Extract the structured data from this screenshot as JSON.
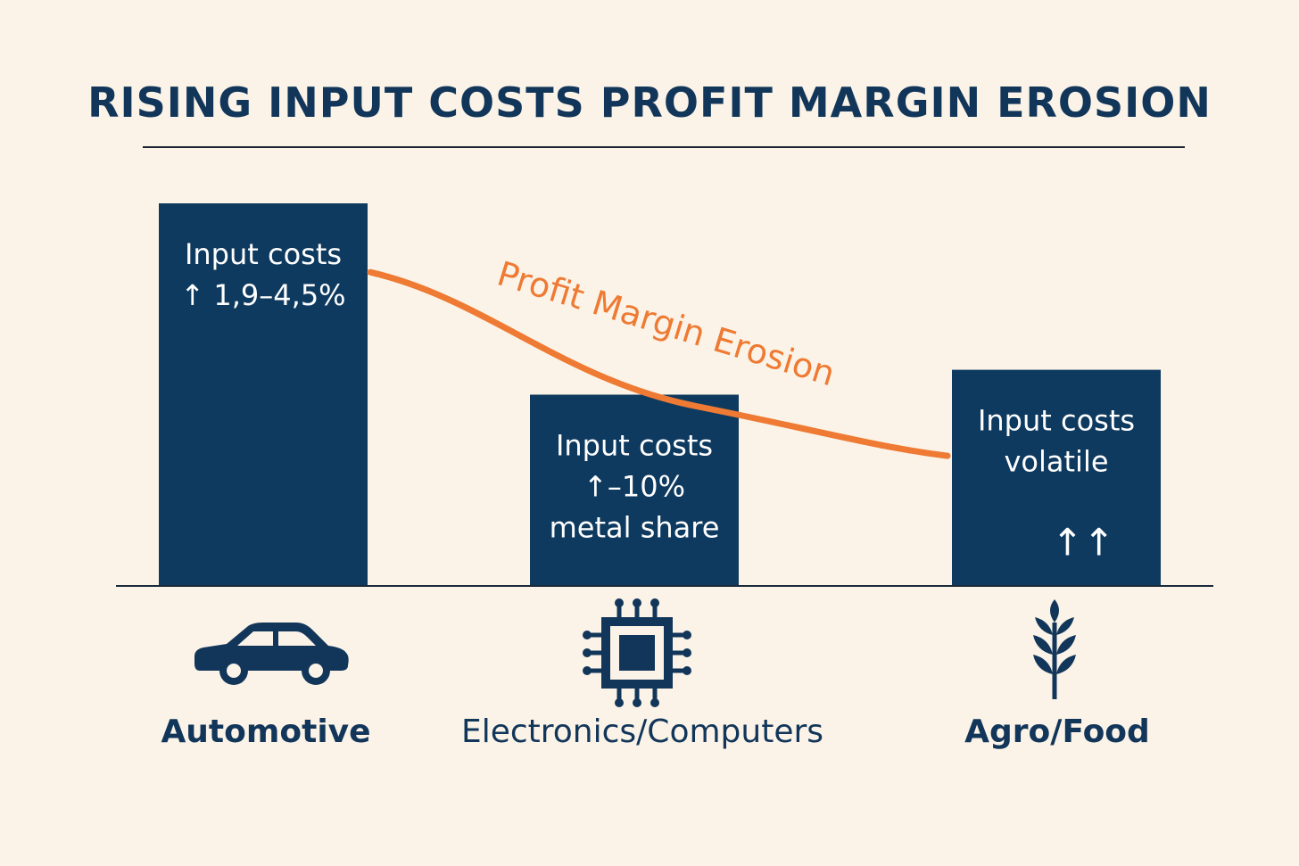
{
  "title": "RISING INPUT COSTS PROFIT MARGIN EROSION",
  "colors": {
    "bar": "#0f3a5f",
    "line": "#ee7a33",
    "text": "#12365a",
    "background": "#fbf3e7"
  },
  "chart_data": {
    "type": "bar",
    "categories": [
      "Automotive",
      "Electronics/Computers",
      "Agro/Food"
    ],
    "values": [
      100,
      50,
      56.5
    ],
    "bar_labels": [
      [
        "Input costs",
        "↑ 1,9–4,5%"
      ],
      [
        "Input costs",
        "↑–10%",
        "metal share"
      ],
      [
        "Input costs",
        "volatile",
        "↑↑"
      ]
    ],
    "category_icons": [
      "car-icon",
      "chip-icon",
      "wheat-icon"
    ],
    "line_series": {
      "name": "Profit Margin Erosion",
      "values": [
        82,
        47,
        34
      ]
    },
    "ylim": [
      0,
      100
    ],
    "grid": false
  }
}
